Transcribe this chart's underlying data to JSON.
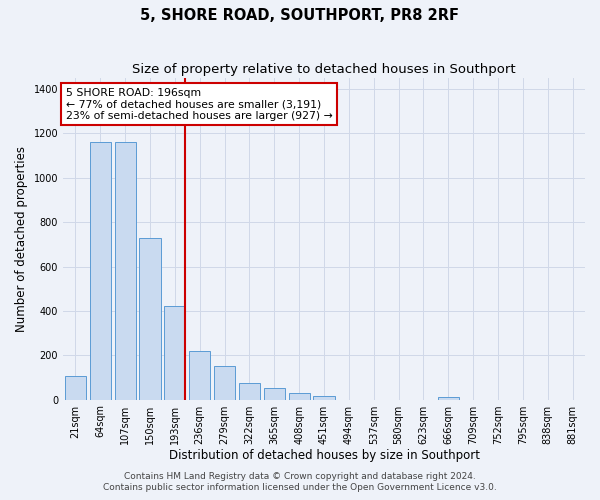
{
  "title": "5, SHORE ROAD, SOUTHPORT, PR8 2RF",
  "subtitle": "Size of property relative to detached houses in Southport",
  "xlabel": "Distribution of detached houses by size in Southport",
  "ylabel": "Number of detached properties",
  "categories": [
    "21sqm",
    "64sqm",
    "107sqm",
    "150sqm",
    "193sqm",
    "236sqm",
    "279sqm",
    "322sqm",
    "365sqm",
    "408sqm",
    "451sqm",
    "494sqm",
    "537sqm",
    "580sqm",
    "623sqm",
    "666sqm",
    "709sqm",
    "752sqm",
    "795sqm",
    "838sqm",
    "881sqm"
  ],
  "values": [
    105,
    1160,
    1160,
    730,
    420,
    220,
    150,
    75,
    50,
    30,
    18,
    0,
    0,
    0,
    0,
    12,
    0,
    0,
    0,
    0,
    0
  ],
  "bar_color": "#c9daf0",
  "bar_edge_color": "#5b9bd5",
  "vline_color": "#cc0000",
  "vline_x_index": 4,
  "annotation_text": "5 SHORE ROAD: 196sqm\n← 77% of detached houses are smaller (3,191)\n23% of semi-detached houses are larger (927) →",
  "annotation_box_facecolor": "#ffffff",
  "annotation_box_edgecolor": "#cc0000",
  "ylim": [
    0,
    1450
  ],
  "yticks": [
    0,
    200,
    400,
    600,
    800,
    1000,
    1200,
    1400
  ],
  "footer_line1": "Contains HM Land Registry data © Crown copyright and database right 2024.",
  "footer_line2": "Contains public sector information licensed under the Open Government Licence v3.0.",
  "bg_color": "#eef2f9",
  "plot_bg_color": "#eef2f9",
  "grid_color": "#d0d8e8",
  "title_fontsize": 10.5,
  "subtitle_fontsize": 9.5,
  "axis_label_fontsize": 8.5,
  "tick_fontsize": 7,
  "annotation_fontsize": 7.8,
  "footer_fontsize": 6.5
}
